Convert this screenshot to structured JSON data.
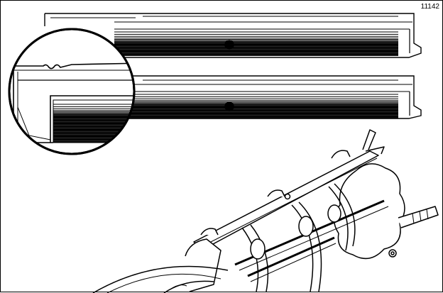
{
  "figure": {
    "number": "11142"
  },
  "colors": {
    "ink": "#000000",
    "paper": "#ffffff"
  },
  "parts": {
    "bar_upper": "bedknife-bar-upper",
    "bar_lower": "bedknife-bar-lower",
    "detail": "magnified-edge-detail-circle",
    "reel": "reel-mower-cutting-unit"
  }
}
